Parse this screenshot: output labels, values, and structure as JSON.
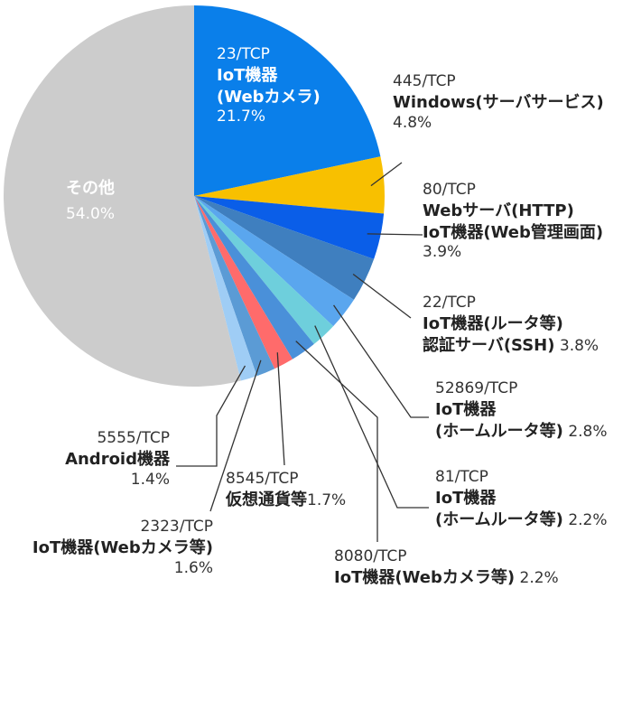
{
  "chart_data": {
    "type": "pie",
    "slices": [
      {
        "port": "23/TCP",
        "name_lines": [
          "IoT機器",
          "(Webカメラ)"
        ],
        "value": 21.7,
        "pct_text": "21.7%",
        "color": "#0a7fea"
      },
      {
        "port": "445/TCP",
        "name_lines": [
          "Windows(サーバサービス)"
        ],
        "value": 4.8,
        "pct_text": "4.8%",
        "color": "#f8c000"
      },
      {
        "port": "80/TCP",
        "name_lines": [
          "Webサーバ(HTTP)",
          "IoT機器(Web管理画面)"
        ],
        "value": 3.9,
        "pct_text": "3.9%",
        "color": "#0a5ee8"
      },
      {
        "port": "22/TCP",
        "name_lines": [
          "IoT機器(ルータ等)",
          "認証サーバ(SSH)"
        ],
        "value": 3.8,
        "pct_text": "3.8%",
        "color": "#3f7fbf"
      },
      {
        "port": "52869/TCP",
        "name_lines": [
          "IoT機器",
          "(ホームルータ等)"
        ],
        "value": 2.8,
        "pct_text": "2.8%",
        "color": "#5aa6ee"
      },
      {
        "port": "81/TCP",
        "name_lines": [
          "IoT機器",
          "(ホームルータ等)"
        ],
        "value": 2.2,
        "pct_text": "2.2%",
        "color": "#6ecfdc"
      },
      {
        "port": "8080/TCP",
        "name_lines": [
          "IoT機器(Webカメラ等)"
        ],
        "value": 2.2,
        "pct_text": "2.2%",
        "color": "#4a90d9"
      },
      {
        "port": "8545/TCP",
        "name_lines": [
          "仮想通貨等"
        ],
        "value": 1.7,
        "pct_text": "1.7%",
        "color": "#ff6b6b"
      },
      {
        "port": "2323/TCP",
        "name_lines": [
          "IoT機器(Webカメラ等)"
        ],
        "value": 1.6,
        "pct_text": "1.6%",
        "color": "#5b9bd5"
      },
      {
        "port": "5555/TCP",
        "name_lines": [
          "Android機器"
        ],
        "value": 1.4,
        "pct_text": "1.4%",
        "color": "#9fcdf5"
      },
      {
        "port": "",
        "name_lines": [
          "その他"
        ],
        "value": 54.0,
        "pct_text": "54.0%",
        "color": "#cccccc"
      }
    ]
  }
}
